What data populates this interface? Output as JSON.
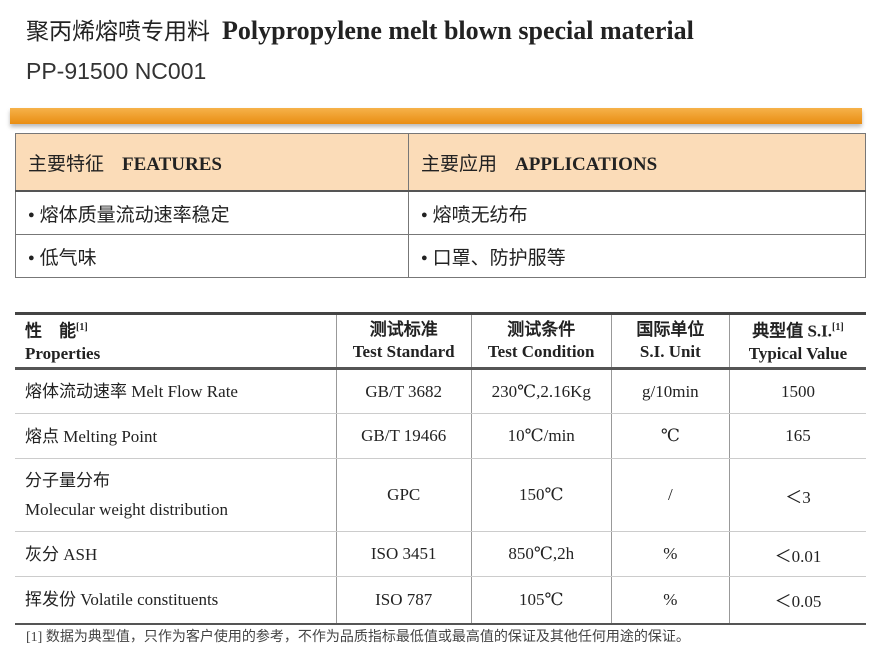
{
  "header": {
    "title_zh": "聚丙烯熔喷专用料",
    "title_en": "Polypropylene melt blown special material",
    "code": "PP-91500 NC001"
  },
  "features": {
    "heading_zh": "主要特征",
    "heading_en": "FEATURES",
    "items": [
      "熔体质量流动速率稳定",
      "低气味"
    ]
  },
  "applications": {
    "heading_zh": "主要应用",
    "heading_en": "APPLICATIONS",
    "items": [
      "熔喷无纺布",
      "口罩、防护服等"
    ]
  },
  "table": {
    "columns": [
      {
        "zh": "性　能",
        "note": "[1]",
        "en": "Properties"
      },
      {
        "zh": "测试标准",
        "en": "Test Standard"
      },
      {
        "zh": "测试条件",
        "en": "Test Condition"
      },
      {
        "zh": "国际单位",
        "en": "S.I. Unit"
      },
      {
        "zh": "典型值 S.I.",
        "note": "[1]",
        "en": "Typical Value"
      }
    ],
    "rows": [
      [
        [
          "熔体流动速率 Melt Flow Rate"
        ],
        "GB/T 3682",
        "230℃,2.16Kg",
        "g/10min",
        "1500"
      ],
      [
        [
          "熔点 Melting Point"
        ],
        "GB/T 19466",
        "10℃/min",
        "℃",
        "165"
      ],
      [
        [
          "分子量分布",
          "Molecular weight distribution"
        ],
        "GPC",
        "150℃",
        "/",
        "＜3"
      ],
      [
        [
          "灰分  ASH"
        ],
        "ISO 3451",
        "850℃,2h",
        "%",
        "＜0.01"
      ],
      [
        [
          "挥发份  Volatile constituents"
        ],
        "ISO 787",
        "105℃",
        "%",
        "＜0.05"
      ]
    ]
  },
  "footnote": "[1]  数据为典型值，只作为客户使用的参考，不作为品质指标最低值或最高值的保证及其他任何用途的保证。"
}
